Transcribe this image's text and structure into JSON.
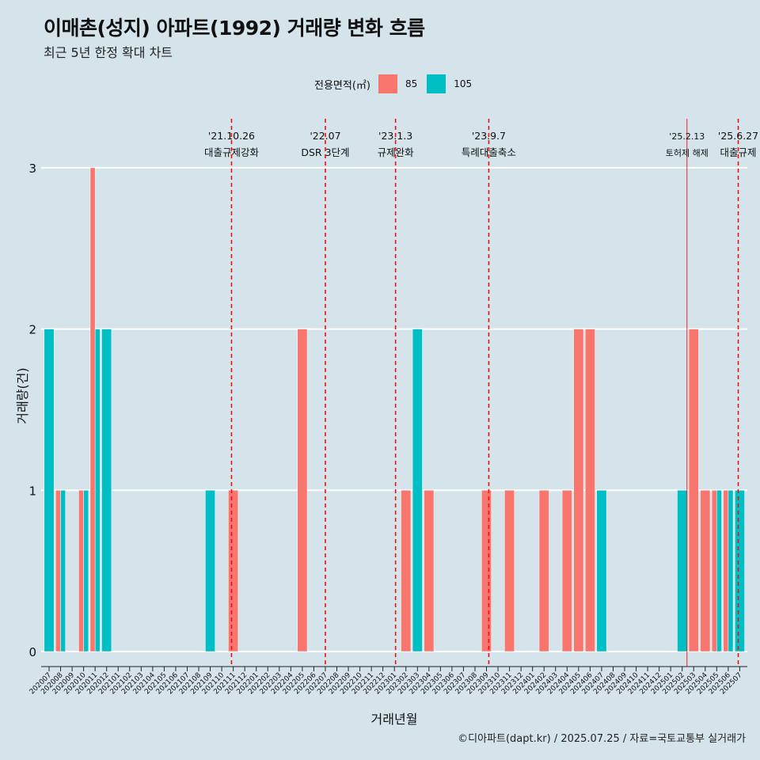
{
  "title": "이매촌(성지) 아파트(1992) 거래량 변화 흐름",
  "subtitle": "최근 5년 한정 확대 차트",
  "caption": "©디아파트(dapt.kr) / 2025.07.25 / 자료=국토교통부 실거래가",
  "legend": {
    "title": "전용면적(㎡)",
    "items": [
      {
        "label": "85",
        "color": "#f8766d"
      },
      {
        "label": "105",
        "color": "#00bfc4"
      }
    ]
  },
  "chart_data": {
    "type": "bar",
    "xlabel": "거래년월",
    "ylabel": "거래량(건)",
    "ylim": [
      0,
      3
    ],
    "yticks": [
      0,
      1,
      2,
      3
    ],
    "grid": true,
    "legend_position": "top",
    "categories": [
      "202007",
      "202008",
      "202009",
      "202010",
      "202011",
      "202012",
      "202101",
      "202102",
      "202103",
      "202104",
      "202105",
      "202106",
      "202107",
      "202108",
      "202109",
      "202110",
      "202111",
      "202112",
      "202201",
      "202202",
      "202203",
      "202204",
      "202205",
      "202206",
      "202207",
      "202208",
      "202209",
      "202210",
      "202211",
      "202212",
      "202301",
      "202302",
      "202303",
      "202304",
      "202305",
      "202306",
      "202307",
      "202308",
      "202309",
      "202310",
      "202311",
      "202312",
      "202401",
      "202402",
      "202403",
      "202404",
      "202405",
      "202406",
      "202407",
      "202408",
      "202409",
      "202410",
      "202411",
      "202412",
      "202501",
      "202502",
      "202503",
      "202504",
      "202505",
      "202506",
      "202507"
    ],
    "series": [
      {
        "name": "85",
        "color": "#f8766d",
        "values": [
          0,
          1,
          0,
          1,
          3,
          0,
          0,
          0,
          0,
          0,
          0,
          0,
          0,
          0,
          0,
          0,
          1,
          0,
          0,
          0,
          0,
          0,
          2,
          0,
          0,
          0,
          0,
          0,
          0,
          0,
          0,
          1,
          0,
          1,
          0,
          0,
          0,
          0,
          1,
          0,
          1,
          0,
          0,
          1,
          0,
          1,
          2,
          2,
          0,
          0,
          0,
          0,
          0,
          0,
          0,
          0,
          2,
          1,
          1,
          1,
          0
        ]
      },
      {
        "name": "105",
        "color": "#00bfc4",
        "values": [
          2,
          1,
          0,
          1,
          2,
          2,
          0,
          0,
          0,
          0,
          0,
          0,
          0,
          0,
          1,
          0,
          0,
          0,
          0,
          0,
          0,
          0,
          0,
          0,
          0,
          0,
          0,
          0,
          0,
          0,
          0,
          0,
          2,
          0,
          0,
          0,
          0,
          0,
          0,
          0,
          0,
          0,
          0,
          0,
          0,
          0,
          0,
          0,
          1,
          0,
          0,
          0,
          0,
          0,
          0,
          1,
          0,
          0,
          1,
          1,
          1
        ]
      }
    ],
    "annotations": [
      {
        "date": "'21.10.26",
        "label": "대출규제강화",
        "month": "202110",
        "pos": 0.85,
        "dashed": true,
        "size": "normal"
      },
      {
        "date": "'22.07",
        "label": "DSR 3단계",
        "month": "202207",
        "pos": 0.0,
        "dashed": true,
        "size": "normal"
      },
      {
        "date": "'23.1.3",
        "label": "규제완화",
        "month": "202301",
        "pos": 0.1,
        "dashed": true,
        "size": "normal"
      },
      {
        "date": "'23.9.7",
        "label": "특례대출축소",
        "month": "202309",
        "pos": 0.2,
        "dashed": true,
        "size": "normal"
      },
      {
        "date": "'25.2.13",
        "label": "토허제 해제",
        "month": "202502",
        "pos": 0.42,
        "dashed": false,
        "size": "small"
      },
      {
        "date": "'25.6.27",
        "label": "대출규제",
        "month": "202506",
        "pos": 0.87,
        "dashed": true,
        "size": "normal"
      }
    ]
  }
}
